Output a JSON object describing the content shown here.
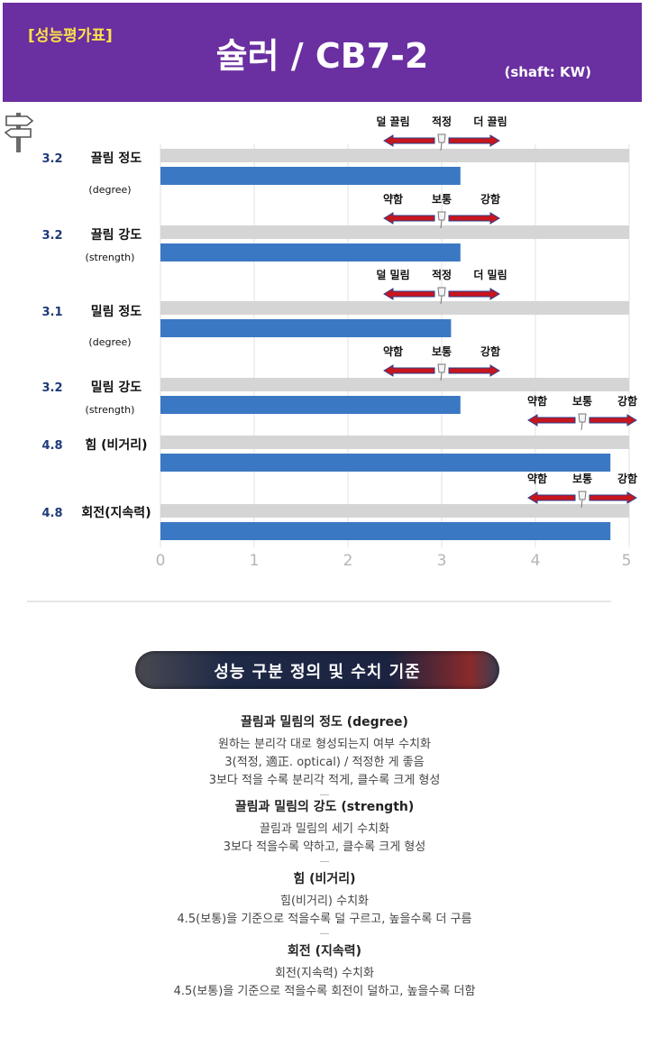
{
  "header": {
    "tag": "[성능평가표]",
    "title": "슐러 / CB7-2",
    "shaft": "(shaft: KW)"
  },
  "chart_data": {
    "type": "bar",
    "orientation": "horizontal",
    "xlim": [
      0,
      5
    ],
    "ticks": [
      "0",
      "1",
      "2",
      "3",
      "4",
      "5"
    ],
    "rows": [
      {
        "value": 3.2,
        "value_label": "3.2",
        "name": "끌림 정도",
        "sub": "(degree)",
        "guide": {
          "left": "덜 끌림",
          "mid": "적정",
          "right": "더 끌림",
          "center": 3
        }
      },
      {
        "value": 3.2,
        "value_label": "3.2",
        "name": "끌림 강도",
        "sub": "(strength)",
        "guide": {
          "left": "약함",
          "mid": "보통",
          "right": "강함",
          "center": 3
        }
      },
      {
        "value": 3.1,
        "value_label": "3.1",
        "name": "밀림 정도",
        "sub": "(degree)",
        "guide": {
          "left": "덜 밀림",
          "mid": "적정",
          "right": "더 밀림",
          "center": 3
        }
      },
      {
        "value": 3.2,
        "value_label": "3.2",
        "name": "밀림 강도",
        "sub": "(strength)",
        "guide": {
          "left": "약함",
          "mid": "보통",
          "right": "강함",
          "center": 3
        }
      },
      {
        "value": 4.8,
        "value_label": "4.8",
        "name": "힘 (비거리)",
        "sub": "",
        "guide": {
          "left": "약함",
          "mid": "보통",
          "right": "강함",
          "center": 4.5
        }
      },
      {
        "value": 4.8,
        "value_label": "4.8",
        "name": "회전(지속력)",
        "sub": "",
        "guide": {
          "left": "약함",
          "mid": "보통",
          "right": "강함",
          "center": 4.5
        }
      }
    ],
    "colors": {
      "bar": "#3b78c3",
      "track": "#d5d5d5",
      "arrow": "#c8161d",
      "arrow_outline": "#2a3f8f",
      "value": "#1f3a78"
    }
  },
  "info": {
    "banner": "성능 구분 정의 및 수치 기준",
    "sections": [
      {
        "title": "끌림과 밀림의 정도 (degree)",
        "lines": [
          "원하는 분리각 대로 형성되는지 여부 수치화",
          "3(적정, 適正. optical) / 적정한 게 좋음",
          "3보다 적을 수록 분리각 적게, 클수록 크게 형성"
        ]
      },
      {
        "title": "끌림과 밀림의 강도 (strength)",
        "lines": [
          "끌림과 밀림의 세기 수치화",
          "3보다 적을수록 약하고, 클수록 크게 형성"
        ]
      },
      {
        "title": "힘 (비거리)",
        "lines": [
          "힘(비거리) 수치화",
          "4.5(보통)을 기준으로 적을수록 덜 구르고, 높을수록 더 구름"
        ]
      },
      {
        "title": "회전 (지속력)",
        "lines": [
          "회전(지속력) 수치화",
          "4.5(보통)을 기준으로 적을수록 회전이 덜하고, 높을수록 더함"
        ]
      }
    ]
  }
}
